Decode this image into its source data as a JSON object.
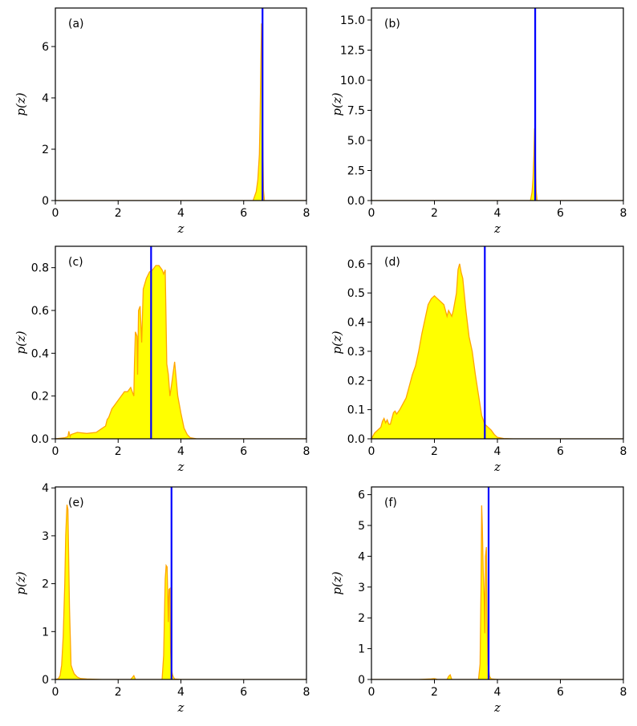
{
  "figure": {
    "xlabel": "z",
    "ylabel": "p(z)"
  },
  "chart_data": [
    {
      "type": "area",
      "panel": "(a)",
      "xlabel": "z",
      "ylabel": "p(z)",
      "xlim": [
        0,
        8
      ],
      "ylim": [
        0,
        7.5
      ],
      "xticks": [
        0,
        2,
        4,
        6,
        8
      ],
      "yticks": [
        0,
        2,
        4,
        6
      ],
      "ytick_labels": [
        "0",
        "2",
        "4",
        "6"
      ],
      "vline": 6.6,
      "fill_color": "#ffff00",
      "line_color": "#ffa500",
      "vline_color": "#0000ff",
      "x": [
        0,
        6.3,
        6.4,
        6.45,
        6.5,
        6.52,
        6.55,
        6.57,
        6.59,
        6.6,
        6.63,
        6.66,
        8
      ],
      "y": [
        0,
        0,
        0.35,
        0.8,
        1.8,
        3.0,
        5.5,
        6.9,
        6.0,
        3.0,
        0.4,
        0,
        0
      ]
    },
    {
      "type": "area",
      "panel": "(b)",
      "xlabel": "z",
      "ylabel": "p(z)",
      "xlim": [
        0,
        8
      ],
      "ylim": [
        0,
        16
      ],
      "xticks": [
        0,
        2,
        4,
        6,
        8
      ],
      "yticks": [
        0,
        2.5,
        5,
        7.5,
        10,
        12.5,
        15
      ],
      "ytick_labels": [
        "0.0",
        "2.5",
        "5.0",
        "7.5",
        "10.0",
        "12.5",
        "15.0"
      ],
      "vline": 5.2,
      "fill_color": "#ffff00",
      "line_color": "#ffa500",
      "vline_color": "#0000ff",
      "x": [
        0,
        5.05,
        5.1,
        5.13,
        5.16,
        5.18,
        5.2,
        5.23,
        5.26,
        8
      ],
      "y": [
        0,
        0,
        0.7,
        1.8,
        3.8,
        6.0,
        4.0,
        0.8,
        0,
        0
      ]
    },
    {
      "type": "area",
      "panel": "(c)",
      "xlabel": "z",
      "ylabel": "p(z)",
      "xlim": [
        0,
        8
      ],
      "ylim": [
        0,
        0.9
      ],
      "xticks": [
        0,
        2,
        4,
        6,
        8
      ],
      "yticks": [
        0,
        0.2,
        0.4,
        0.6,
        0.8
      ],
      "ytick_labels": [
        "0.0",
        "0.2",
        "0.4",
        "0.6",
        "0.8"
      ],
      "vline": 3.05,
      "fill_color": "#ffff00",
      "line_color": "#ffa500",
      "vline_color": "#0000ff",
      "x": [
        0,
        0.3,
        0.4,
        0.43,
        0.47,
        0.5,
        0.7,
        1.0,
        1.3,
        1.6,
        1.65,
        1.7,
        1.8,
        1.9,
        2.0,
        2.1,
        2.2,
        2.3,
        2.4,
        2.5,
        2.52,
        2.55,
        2.6,
        2.62,
        2.65,
        2.7,
        2.75,
        2.8,
        2.9,
        3.0,
        3.1,
        3.2,
        3.3,
        3.4,
        3.45,
        3.5,
        3.55,
        3.6,
        3.65,
        3.7,
        3.8,
        3.9,
        4.0,
        4.1,
        4.2,
        4.3,
        4.5,
        5,
        8
      ],
      "y": [
        0,
        0.005,
        0.01,
        0.035,
        0.01,
        0.02,
        0.03,
        0.025,
        0.03,
        0.06,
        0.09,
        0.1,
        0.14,
        0.16,
        0.18,
        0.2,
        0.22,
        0.22,
        0.24,
        0.2,
        0.35,
        0.5,
        0.48,
        0.3,
        0.6,
        0.62,
        0.45,
        0.7,
        0.75,
        0.78,
        0.79,
        0.81,
        0.81,
        0.79,
        0.77,
        0.79,
        0.35,
        0.3,
        0.2,
        0.25,
        0.36,
        0.2,
        0.12,
        0.05,
        0.02,
        0.005,
        0,
        0,
        0
      ]
    },
    {
      "type": "area",
      "panel": "(d)",
      "xlabel": "z",
      "ylabel": "p(z)",
      "xlim": [
        0,
        8
      ],
      "ylim": [
        0,
        0.66
      ],
      "xticks": [
        0,
        2,
        4,
        6,
        8
      ],
      "yticks": [
        0,
        0.1,
        0.2,
        0.3,
        0.4,
        0.5,
        0.6
      ],
      "ytick_labels": [
        "0.0",
        "0.1",
        "0.2",
        "0.3",
        "0.4",
        "0.5",
        "0.6"
      ],
      "vline": 3.6,
      "fill_color": "#ffff00",
      "line_color": "#ffa500",
      "vline_color": "#0000ff",
      "x": [
        0,
        0.05,
        0.1,
        0.2,
        0.3,
        0.35,
        0.4,
        0.45,
        0.5,
        0.55,
        0.6,
        0.7,
        0.75,
        0.8,
        0.9,
        1.0,
        1.1,
        1.2,
        1.3,
        1.4,
        1.5,
        1.6,
        1.7,
        1.8,
        1.9,
        2.0,
        2.1,
        2.2,
        2.3,
        2.4,
        2.45,
        2.5,
        2.55,
        2.6,
        2.7,
        2.75,
        2.8,
        2.85,
        2.9,
        3.0,
        3.1,
        3.2,
        3.3,
        3.4,
        3.5,
        3.6,
        3.7,
        3.8,
        3.9,
        4.0,
        4.2,
        4.5,
        5,
        8
      ],
      "y": [
        0,
        0.01,
        0.02,
        0.03,
        0.04,
        0.06,
        0.07,
        0.055,
        0.065,
        0.05,
        0.05,
        0.09,
        0.095,
        0.085,
        0.1,
        0.12,
        0.14,
        0.18,
        0.22,
        0.25,
        0.3,
        0.36,
        0.41,
        0.46,
        0.48,
        0.49,
        0.48,
        0.47,
        0.46,
        0.42,
        0.44,
        0.43,
        0.42,
        0.44,
        0.5,
        0.58,
        0.6,
        0.57,
        0.55,
        0.44,
        0.35,
        0.3,
        0.22,
        0.15,
        0.08,
        0.05,
        0.04,
        0.03,
        0.015,
        0.005,
        0.001,
        0,
        0,
        0
      ]
    },
    {
      "type": "area",
      "panel": "(e)",
      "xlabel": "z",
      "ylabel": "p(z)",
      "xlim": [
        0,
        8
      ],
      "ylim": [
        0,
        4.02
      ],
      "xticks": [
        0,
        2,
        4,
        6,
        8
      ],
      "yticks": [
        0,
        1,
        2,
        3,
        4
      ],
      "ytick_labels": [
        "0",
        "1",
        "2",
        "3",
        "4"
      ],
      "vline": 3.7,
      "fill_color": "#ffff00",
      "line_color": "#ffa500",
      "vline_color": "#0000ff",
      "x": [
        0,
        0.1,
        0.15,
        0.2,
        0.25,
        0.3,
        0.33,
        0.37,
        0.4,
        0.45,
        0.5,
        0.55,
        0.6,
        0.7,
        0.8,
        1.0,
        1.5,
        2.4,
        2.45,
        2.5,
        2.55,
        3.4,
        3.45,
        3.5,
        3.53,
        3.56,
        3.6,
        3.62,
        3.65,
        3.67,
        3.7,
        3.73,
        3.76,
        3.8,
        4.0,
        8
      ],
      "y": [
        0,
        0.02,
        0.08,
        0.3,
        0.9,
        2.0,
        3.0,
        3.65,
        3.55,
        1.5,
        0.3,
        0.2,
        0.12,
        0.05,
        0.02,
        0.01,
        0.0,
        0.0,
        0.04,
        0.08,
        0.0,
        0.0,
        0.5,
        2.1,
        2.38,
        2.35,
        1.2,
        1.88,
        1.9,
        0.6,
        0.2,
        0.1,
        0.05,
        0.01,
        0.0,
        0.0
      ]
    },
    {
      "type": "area",
      "panel": "(f)",
      "xlabel": "z",
      "ylabel": "p(z)",
      "xlim": [
        0,
        8
      ],
      "ylim": [
        0,
        6.25
      ],
      "xticks": [
        0,
        2,
        4,
        6,
        8
      ],
      "yticks": [
        0,
        1,
        2,
        3,
        4,
        5,
        6
      ],
      "ytick_labels": [
        "0",
        "1",
        "2",
        "3",
        "4",
        "5",
        "6"
      ],
      "vline": 3.72,
      "fill_color": "#ffff00",
      "line_color": "#ffa500",
      "vline_color": "#0000ff",
      "x": [
        0,
        1.5,
        1.9,
        2.0,
        2.1,
        2.4,
        2.45,
        2.5,
        2.55,
        3.4,
        3.45,
        3.48,
        3.5,
        3.52,
        3.55,
        3.58,
        3.6,
        3.62,
        3.65,
        3.67,
        3.7,
        3.75,
        3.8,
        4.0,
        8
      ],
      "y": [
        0,
        0,
        0.02,
        0.03,
        0.0,
        0.0,
        0.1,
        0.15,
        0.0,
        0.0,
        0.5,
        3.0,
        5.65,
        5.0,
        3.5,
        2.7,
        1.5,
        4.0,
        4.3,
        2.0,
        0.5,
        0.1,
        0.02,
        0.0,
        0.0
      ]
    }
  ]
}
